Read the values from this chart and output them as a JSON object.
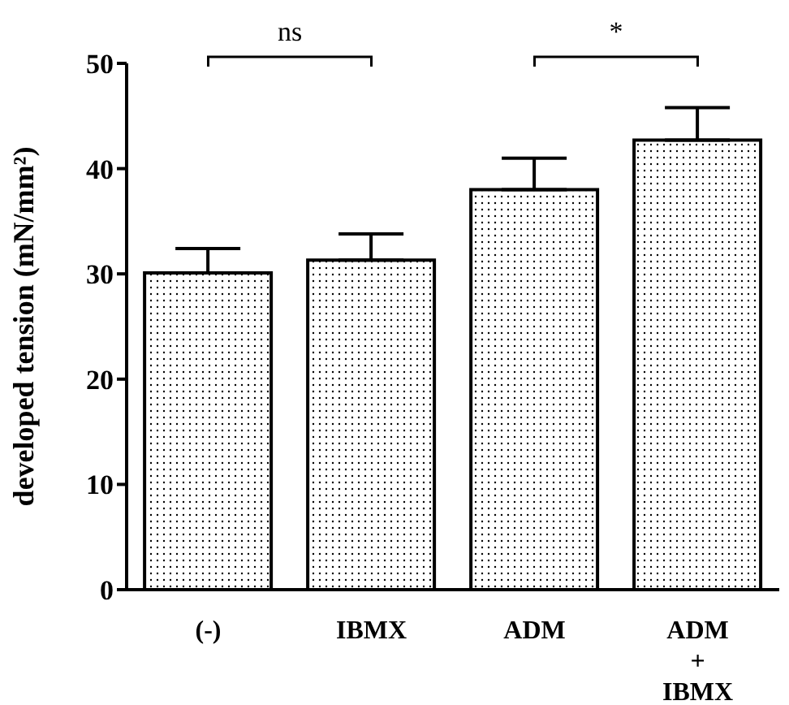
{
  "chart_data": {
    "type": "bar",
    "ylabel": "developed tension (mN/mm²)",
    "categories": [
      "(-)",
      "IBMX",
      "ADM",
      "ADM\n+\nIBMX"
    ],
    "values": [
      30.1,
      31.3,
      38.0,
      42.7
    ],
    "errors": [
      [
        30.1,
        32.4
      ],
      [
        31.3,
        33.8
      ],
      [
        38.0,
        41.0
      ],
      [
        42.7,
        45.8
      ]
    ],
    "color": "#000000",
    "ylim": [
      0,
      50
    ],
    "yticks": [
      0,
      10,
      20,
      30,
      40,
      50
    ],
    "annotations": [
      "ns",
      "*"
    ]
  }
}
